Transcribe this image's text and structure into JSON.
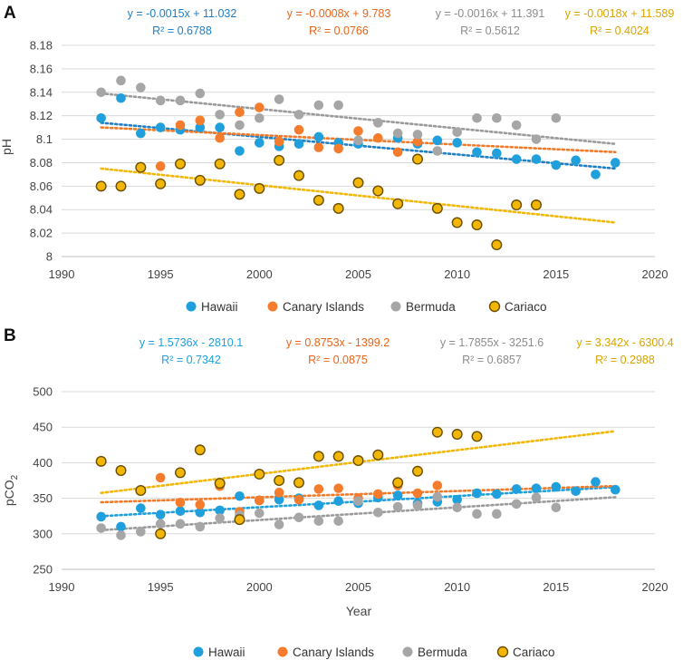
{
  "chart_data": [
    {
      "panel": "A",
      "type": "scatter",
      "ylabel": "pH",
      "xlabel": "",
      "xlim": [
        1990,
        2020
      ],
      "ylim": [
        8,
        8.18
      ],
      "xticks": [
        "1990",
        "1995",
        "2000",
        "2005",
        "2010",
        "2015",
        "2020"
      ],
      "yticks": [
        "8",
        "8.02",
        "8.04",
        "8.06",
        "8.08",
        "8.1",
        "8.12",
        "8.14",
        "8.16",
        "8.18"
      ],
      "grid": true,
      "legend": "bottom",
      "series": [
        {
          "name": "Hawaii",
          "color": "#1f9fdb",
          "trend_color": "#1f7fc4",
          "equation": "y = -0.0015x + 11.032",
          "r2": "R² = 0.6788",
          "trend": [
            [
              1992,
              8.114
            ],
            [
              2018,
              8.075
            ]
          ],
          "points": [
            [
              1992,
              8.118
            ],
            [
              1993,
              8.135
            ],
            [
              1994,
              8.105
            ],
            [
              1995,
              8.11
            ],
            [
              1996,
              8.108
            ],
            [
              1997,
              8.11
            ],
            [
              1998,
              8.11
            ],
            [
              1999,
              8.09
            ],
            [
              2000,
              8.097
            ],
            [
              2001,
              8.094
            ],
            [
              2002,
              8.096
            ],
            [
              2003,
              8.102
            ],
            [
              2004,
              8.097
            ],
            [
              2005,
              8.096
            ],
            [
              2007,
              8.101
            ],
            [
              2008,
              8.096
            ],
            [
              2009,
              8.099
            ],
            [
              2010,
              8.097
            ],
            [
              2011,
              8.089
            ],
            [
              2012,
              8.088
            ],
            [
              2013,
              8.083
            ],
            [
              2014,
              8.083
            ],
            [
              2015,
              8.078
            ],
            [
              2016,
              8.082
            ],
            [
              2017,
              8.07
            ],
            [
              2018,
              8.08
            ]
          ]
        },
        {
          "name": "Canary Islands",
          "color": "#f47c2c",
          "trend_color": "#f07a2a",
          "equation": "y = -0.0008x + 9.783",
          "r2": "R² = 0.0766",
          "trend": [
            [
              1992,
              8.11
            ],
            [
              2018,
              8.089
            ]
          ],
          "points": [
            [
              1995,
              8.077
            ],
            [
              1996,
              8.112
            ],
            [
              1997,
              8.116
            ],
            [
              1998,
              8.101
            ],
            [
              1999,
              8.123
            ],
            [
              2000,
              8.127
            ],
            [
              2001,
              8.098
            ],
            [
              2002,
              8.108
            ],
            [
              2003,
              8.093
            ],
            [
              2004,
              8.092
            ],
            [
              2005,
              8.107
            ],
            [
              2006,
              8.101
            ],
            [
              2007,
              8.089
            ],
            [
              2008,
              8.098
            ]
          ]
        },
        {
          "name": "Bermuda",
          "color": "#a6a6a6",
          "trend_color": "#9a9a9a",
          "equation": "y = -0.0016x + 11.391",
          "r2": "R² = 0.5612",
          "trend": [
            [
              1992,
              8.139
            ],
            [
              2018,
              8.096
            ]
          ],
          "points": [
            [
              1992,
              8.14
            ],
            [
              1993,
              8.15
            ],
            [
              1994,
              8.144
            ],
            [
              1995,
              8.133
            ],
            [
              1996,
              8.133
            ],
            [
              1997,
              8.139
            ],
            [
              1998,
              8.121
            ],
            [
              1999,
              8.112
            ],
            [
              2000,
              8.118
            ],
            [
              2001,
              8.134
            ],
            [
              2002,
              8.121
            ],
            [
              2003,
              8.129
            ],
            [
              2004,
              8.129
            ],
            [
              2005,
              8.099
            ],
            [
              2006,
              8.114
            ],
            [
              2007,
              8.105
            ],
            [
              2008,
              8.104
            ],
            [
              2009,
              8.09
            ],
            [
              2010,
              8.106
            ],
            [
              2011,
              8.118
            ],
            [
              2012,
              8.118
            ],
            [
              2013,
              8.112
            ],
            [
              2014,
              8.1
            ],
            [
              2015,
              8.118
            ]
          ]
        },
        {
          "name": "Cariaco",
          "color": "#f2b705",
          "edge": "#6b4e00",
          "trend_color": "#f2b705",
          "equation": "y = -0.0018x + 11.589",
          "r2": "R² = 0.4024",
          "trend": [
            [
              1992,
              8.075
            ],
            [
              2018,
              8.029
            ]
          ],
          "points": [
            [
              1992,
              8.06
            ],
            [
              1993,
              8.06
            ],
            [
              1994,
              8.076
            ],
            [
              1995,
              8.062
            ],
            [
              1996,
              8.079
            ],
            [
              1997,
              8.065
            ],
            [
              1998,
              8.079
            ],
            [
              1999,
              8.053
            ],
            [
              2000,
              8.058
            ],
            [
              2001,
              8.082
            ],
            [
              2002,
              8.069
            ],
            [
              2003,
              8.048
            ],
            [
              2004,
              8.041
            ],
            [
              2005,
              8.063
            ],
            [
              2006,
              8.056
            ],
            [
              2007,
              8.045
            ],
            [
              2008,
              8.083
            ],
            [
              2009,
              8.041
            ],
            [
              2010,
              8.029
            ],
            [
              2011,
              8.027
            ],
            [
              2012,
              8.01
            ],
            [
              2013,
              8.044
            ],
            [
              2014,
              8.044
            ]
          ]
        }
      ]
    },
    {
      "panel": "B",
      "type": "scatter",
      "ylabel": "pCO",
      "ylabel_sub": "2",
      "xlabel": "Year",
      "xlim": [
        1990,
        2020
      ],
      "ylim": [
        250,
        500
      ],
      "xticks": [
        "1990",
        "1995",
        "2000",
        "2005",
        "2010",
        "2015",
        "2020"
      ],
      "yticks": [
        "250",
        "300",
        "350",
        "400",
        "450",
        "500"
      ],
      "grid": true,
      "legend": "bottom",
      "series": [
        {
          "name": "Hawaii",
          "color": "#1f9fdb",
          "trend_color": "#1f9fdb",
          "equation": "y = 1.5736x - 2810.1",
          "r2": "R² = 0.7342",
          "trend": [
            [
              1992,
              324.8
            ],
            [
              2018,
              365.7
            ]
          ],
          "points": [
            [
              1992,
              324
            ],
            [
              1993,
              310
            ],
            [
              1994,
              336
            ],
            [
              1995,
              327
            ],
            [
              1996,
              332
            ],
            [
              1997,
              330
            ],
            [
              1998,
              333
            ],
            [
              1999,
              353
            ],
            [
              2000,
              347
            ],
            [
              2001,
              348
            ],
            [
              2002,
              350
            ],
            [
              2003,
              340
            ],
            [
              2004,
              346
            ],
            [
              2005,
              343
            ],
            [
              2006,
              351
            ],
            [
              2007,
              354
            ],
            [
              2008,
              343
            ],
            [
              2009,
              345
            ],
            [
              2010,
              348
            ],
            [
              2011,
              357
            ],
            [
              2012,
              356
            ],
            [
              2013,
              363
            ],
            [
              2014,
              364
            ],
            [
              2015,
              366
            ],
            [
              2016,
              360
            ],
            [
              2017,
              373
            ],
            [
              2018,
              362
            ]
          ]
        },
        {
          "name": "Canary Islands",
          "color": "#f47c2c",
          "trend_color": "#f07a2a",
          "equation": "y = 0.8753x - 1399.2",
          "r2": "R² = 0.0875",
          "trend": [
            [
              1992,
              344.4
            ],
            [
              2018,
              367.2
            ]
          ],
          "points": [
            [
              1995,
              379
            ],
            [
              1996,
              344
            ],
            [
              1997,
              341
            ],
            [
              1998,
              367
            ],
            [
              1999,
              331
            ],
            [
              2000,
              347
            ],
            [
              2001,
              358
            ],
            [
              2002,
              348
            ],
            [
              2003,
              363
            ],
            [
              2004,
              364
            ],
            [
              2005,
              350
            ],
            [
              2006,
              356
            ],
            [
              2007,
              368
            ],
            [
              2008,
              357
            ],
            [
              2009,
              368
            ]
          ]
        },
        {
          "name": "Bermuda",
          "color": "#a6a6a6",
          "trend_color": "#9a9a9a",
          "equation": "y = 1.7855x - 3251.6",
          "r2": "R² = 0.6857",
          "trend": [
            [
              1992,
              305.1
            ],
            [
              2018,
              351.5
            ]
          ],
          "points": [
            [
              1992,
              308
            ],
            [
              1993,
              298
            ],
            [
              1994,
              303
            ],
            [
              1995,
              314
            ],
            [
              1996,
              314
            ],
            [
              1997,
              310
            ],
            [
              1998,
              322
            ],
            [
              1999,
              326
            ],
            [
              2000,
              329
            ],
            [
              2001,
              313
            ],
            [
              2002,
              323
            ],
            [
              2003,
              318
            ],
            [
              2004,
              318
            ],
            [
              2005,
              346
            ],
            [
              2006,
              330
            ],
            [
              2007,
              338
            ],
            [
              2008,
              340
            ],
            [
              2009,
              352
            ],
            [
              2010,
              337
            ],
            [
              2011,
              328
            ],
            [
              2012,
              328
            ],
            [
              2013,
              342
            ],
            [
              2014,
              351
            ],
            [
              2015,
              337
            ]
          ]
        },
        {
          "name": "Cariaco",
          "color": "#f2b705",
          "edge": "#6b4e00",
          "trend_color": "#f2b705",
          "equation": "y = 3.342x - 6300.4",
          "r2": "R² = 0.2988",
          "trend": [
            [
              1992,
              357.5
            ],
            [
              2018,
              444.4
            ]
          ],
          "points": [
            [
              1992,
              402
            ],
            [
              1993,
              389
            ],
            [
              1994,
              361
            ],
            [
              1995,
              300
            ],
            [
              1996,
              386
            ],
            [
              1997,
              418
            ],
            [
              1998,
              371
            ],
            [
              1999,
              320
            ],
            [
              2000,
              384
            ],
            [
              2001,
              375
            ],
            [
              2002,
              372
            ],
            [
              2003,
              409
            ],
            [
              2004,
              409
            ],
            [
              2005,
              403
            ],
            [
              2006,
              411
            ],
            [
              2007,
              372
            ],
            [
              2008,
              388
            ],
            [
              2009,
              443
            ],
            [
              2010,
              440
            ],
            [
              2011,
              437
            ]
          ]
        }
      ]
    }
  ]
}
